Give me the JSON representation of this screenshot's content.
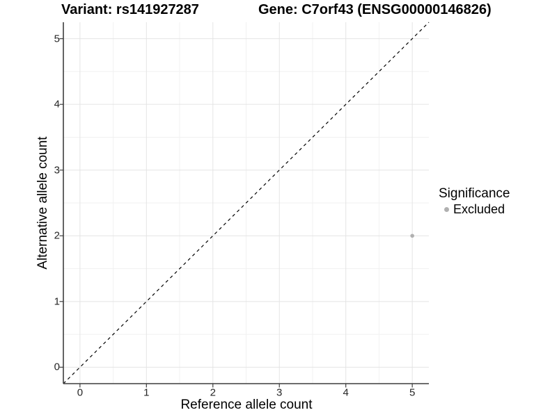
{
  "chart_data": {
    "type": "scatter",
    "titles": {
      "left": "Variant: rs141927287",
      "right": "Gene: C7orf43 (ENSG00000146826)"
    },
    "xlabel": "Reference allele count",
    "ylabel": "Alternative allele count",
    "xlim": [
      -0.25,
      5.25
    ],
    "ylim": [
      -0.25,
      5.25
    ],
    "xticks": [
      0,
      1,
      2,
      3,
      4,
      5
    ],
    "yticks": [
      0,
      1,
      2,
      3,
      4,
      5
    ],
    "grid": {
      "major": true,
      "minor": true
    },
    "identity_line": {
      "from": [
        -0.25,
        -0.25
      ],
      "to": [
        5.25,
        5.25
      ],
      "style": "dashed",
      "color": "#000000"
    },
    "series": [
      {
        "name": "Excluded",
        "color": "#b0b0b0",
        "points": [
          [
            5,
            2
          ]
        ]
      }
    ],
    "legend": {
      "title": "Significance",
      "position": "right",
      "entries": [
        {
          "label": "Excluded",
          "color": "#b0b0b0",
          "marker": "circle"
        }
      ]
    }
  },
  "colors": {
    "background": "#ffffff",
    "axis_line": "#3d3d3d",
    "tick_mark": "#3d3d3d",
    "tick_text": "#262626",
    "grid_major": "#e4e4e4",
    "grid_minor": "#f1f1f1",
    "title_text": "#000000"
  }
}
